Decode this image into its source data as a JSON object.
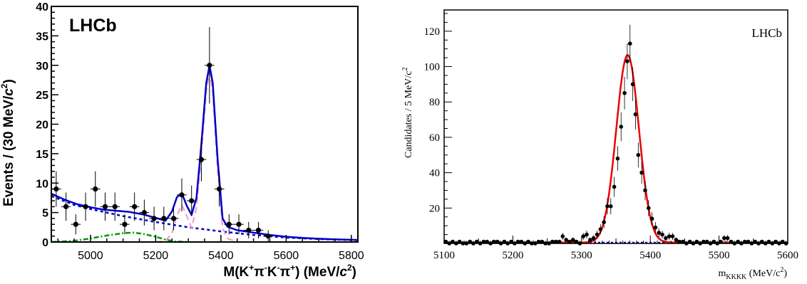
{
  "chart_data": [
    {
      "type": "scatter",
      "title": "",
      "annotation": "LHCb",
      "xlabel": {
        "prefix": "M(K",
        "k1": "+",
        "pi1": "π",
        "m1": "-",
        "k2": "K",
        "m2": "-",
        "pi2": "π",
        "p2": "+",
        "suffix": ") (MeV/",
        "c": "c",
        "exp": "2",
        "close": ")"
      },
      "ylabel": {
        "prefix": "Events / (30 MeV/",
        "c": "c",
        "exp": "2",
        "close": ")"
      },
      "xlim": [
        4880,
        5820
      ],
      "ylim": [
        0,
        40
      ],
      "xticks": [
        5000,
        5200,
        5400,
        5600,
        5800
      ],
      "yticks": [
        0,
        5,
        10,
        15,
        20,
        25,
        30,
        35,
        40
      ],
      "data_points": [
        {
          "x": 4895,
          "y": 9,
          "err": 3
        },
        {
          "x": 4925,
          "y": 6,
          "err": 2.4
        },
        {
          "x": 4955,
          "y": 3,
          "err": 1.7
        },
        {
          "x": 4985,
          "y": 6,
          "err": 2.4
        },
        {
          "x": 5015,
          "y": 9,
          "err": 3
        },
        {
          "x": 5045,
          "y": 6,
          "err": 2.4
        },
        {
          "x": 5075,
          "y": 6,
          "err": 2.4
        },
        {
          "x": 5105,
          "y": 3,
          "err": 1.7
        },
        {
          "x": 5135,
          "y": 6,
          "err": 2.4
        },
        {
          "x": 5165,
          "y": 5,
          "err": 2.2
        },
        {
          "x": 5195,
          "y": 4,
          "err": 2
        },
        {
          "x": 5225,
          "y": 4,
          "err": 2
        },
        {
          "x": 5255,
          "y": 4,
          "err": 2
        },
        {
          "x": 5280,
          "y": 8,
          "err": 2.8
        },
        {
          "x": 5310,
          "y": 7,
          "err": 2.6
        },
        {
          "x": 5340,
          "y": 14,
          "err": 3.7
        },
        {
          "x": 5365,
          "y": 30,
          "err": 6.5
        },
        {
          "x": 5395,
          "y": 9,
          "err": 3
        },
        {
          "x": 5425,
          "y": 3,
          "err": 1.7
        },
        {
          "x": 5455,
          "y": 3,
          "err": 1.7
        },
        {
          "x": 5485,
          "y": 2,
          "err": 1.4
        },
        {
          "x": 5515,
          "y": 2,
          "err": 1.4
        },
        {
          "x": 5545,
          "y": 1,
          "err": 1
        }
      ],
      "curves": {
        "total": {
          "color": "#0000cc",
          "x": [
            4880,
            4920,
            4960,
            5000,
            5040,
            5080,
            5120,
            5160,
            5200,
            5230,
            5250,
            5265,
            5280,
            5295,
            5310,
            5325,
            5340,
            5355,
            5365,
            5375,
            5390,
            5405,
            5420,
            5450,
            5500,
            5550,
            5600,
            5650,
            5700,
            5750,
            5820
          ],
          "y": [
            8.2,
            7.2,
            6.4,
            5.9,
            5.5,
            5.3,
            5.1,
            4.7,
            4.1,
            3.6,
            5.2,
            7.6,
            8.3,
            6.2,
            4.6,
            7.5,
            16.5,
            27,
            30,
            27,
            14,
            4,
            2.6,
            2,
            1.6,
            1.2,
            0.9,
            0.7,
            0.55,
            0.45,
            0.35
          ]
        },
        "combinatorial": {
          "color": "#0000cc",
          "x": [
            4880,
            4950,
            5000,
            5100,
            5200,
            5300,
            5400,
            5500,
            5600,
            5700,
            5820
          ],
          "y": [
            7.8,
            6.3,
            5.6,
            4.4,
            3.4,
            2.5,
            1.8,
            1.2,
            0.75,
            0.5,
            0.3
          ]
        },
        "signal": {
          "color": "#ee99cc",
          "x": [
            5200,
            5230,
            5250,
            5265,
            5280,
            5295,
            5310,
            5325,
            5340,
            5355,
            5365,
            5375,
            5390,
            5405,
            5420,
            5450
          ],
          "y": [
            0,
            0.2,
            1.5,
            4.5,
            6.3,
            4.5,
            2.4,
            5.8,
            14.8,
            25.5,
            28.8,
            25.5,
            12.2,
            2.4,
            0.6,
            0
          ]
        },
        "partial": {
          "color": "#009900",
          "x": [
            4880,
            4950,
            5000,
            5050,
            5100,
            5130,
            5160,
            5200,
            5230,
            5260,
            5300
          ],
          "y": [
            0,
            0.2,
            0.6,
            1.1,
            1.5,
            1.6,
            1.4,
            0.9,
            0.4,
            0.1,
            0
          ]
        }
      }
    },
    {
      "type": "scatter",
      "title": "",
      "annotation": "LHCb",
      "xlabel": {
        "m": "m",
        "sub": "KKKK",
        "units": " (MeV/c",
        "exp": "2",
        "close": ")"
      },
      "ylabel": "Candidates / 5 MeV/c",
      "ylabel_exp": "2",
      "xlim": [
        5100,
        5600
      ],
      "ylim": [
        0,
        132
      ],
      "xticks": [
        5100,
        5200,
        5300,
        5400,
        5500,
        5600
      ],
      "yticks": [
        20,
        40,
        60,
        80,
        100,
        120
      ],
      "data_points": [
        {
          "x": 5102.5,
          "y": 1
        },
        {
          "x": 5107.5,
          "y": 0
        },
        {
          "x": 5112.5,
          "y": 1
        },
        {
          "x": 5117.5,
          "y": 0
        },
        {
          "x": 5122.5,
          "y": 1
        },
        {
          "x": 5127.5,
          "y": 0
        },
        {
          "x": 5132.5,
          "y": 0
        },
        {
          "x": 5137.5,
          "y": 1
        },
        {
          "x": 5142.5,
          "y": 0
        },
        {
          "x": 5147.5,
          "y": 1
        },
        {
          "x": 5152.5,
          "y": 0
        },
        {
          "x": 5157.5,
          "y": 1
        },
        {
          "x": 5162.5,
          "y": 1
        },
        {
          "x": 5167.5,
          "y": 0
        },
        {
          "x": 5172.5,
          "y": 1
        },
        {
          "x": 5177.5,
          "y": 1
        },
        {
          "x": 5182.5,
          "y": 0
        },
        {
          "x": 5187.5,
          "y": 1
        },
        {
          "x": 5192.5,
          "y": 0
        },
        {
          "x": 5197.5,
          "y": 1
        },
        {
          "x": 5202.5,
          "y": 0
        },
        {
          "x": 5207.5,
          "y": 1
        },
        {
          "x": 5212.5,
          "y": 1
        },
        {
          "x": 5217.5,
          "y": 0
        },
        {
          "x": 5222.5,
          "y": 1
        },
        {
          "x": 5227.5,
          "y": 0
        },
        {
          "x": 5232.5,
          "y": 0
        },
        {
          "x": 5237.5,
          "y": 1
        },
        {
          "x": 5242.5,
          "y": 1
        },
        {
          "x": 5247.5,
          "y": 0
        },
        {
          "x": 5252.5,
          "y": 0
        },
        {
          "x": 5257.5,
          "y": 1
        },
        {
          "x": 5262.5,
          "y": 1
        },
        {
          "x": 5267.5,
          "y": 1
        },
        {
          "x": 5272.5,
          "y": 4
        },
        {
          "x": 5277.5,
          "y": 2
        },
        {
          "x": 5282.5,
          "y": 1
        },
        {
          "x": 5287.5,
          "y": 2
        },
        {
          "x": 5292.5,
          "y": 1
        },
        {
          "x": 5297.5,
          "y": 0
        },
        {
          "x": 5302.5,
          "y": 4
        },
        {
          "x": 5307.5,
          "y": 5
        },
        {
          "x": 5312.5,
          "y": 2
        },
        {
          "x": 5317.5,
          "y": 3
        },
        {
          "x": 5322.5,
          "y": 5
        },
        {
          "x": 5327.5,
          "y": 8
        },
        {
          "x": 5332.5,
          "y": 12
        },
        {
          "x": 5337.5,
          "y": 21
        },
        {
          "x": 5342.5,
          "y": 21
        },
        {
          "x": 5347.5,
          "y": 32
        },
        {
          "x": 5352.5,
          "y": 48
        },
        {
          "x": 5357.5,
          "y": 66
        },
        {
          "x": 5362.5,
          "y": 85
        },
        {
          "x": 5366.5,
          "y": 103
        },
        {
          "x": 5370.5,
          "y": 113
        },
        {
          "x": 5374.5,
          "y": 90
        },
        {
          "x": 5378.5,
          "y": 73
        },
        {
          "x": 5382.5,
          "y": 50
        },
        {
          "x": 5387.5,
          "y": 40
        },
        {
          "x": 5392.5,
          "y": 30
        },
        {
          "x": 5397.5,
          "y": 20
        },
        {
          "x": 5402.5,
          "y": 14
        },
        {
          "x": 5407.5,
          "y": 9
        },
        {
          "x": 5412.5,
          "y": 6
        },
        {
          "x": 5417.5,
          "y": 5
        },
        {
          "x": 5422.5,
          "y": 3
        },
        {
          "x": 5427.5,
          "y": 4
        },
        {
          "x": 5432.5,
          "y": 4
        },
        {
          "x": 5437.5,
          "y": 2
        },
        {
          "x": 5442.5,
          "y": 1
        },
        {
          "x": 5447.5,
          "y": 1
        },
        {
          "x": 5452.5,
          "y": 0
        },
        {
          "x": 5457.5,
          "y": 1
        },
        {
          "x": 5462.5,
          "y": 0
        },
        {
          "x": 5467.5,
          "y": 1
        },
        {
          "x": 5472.5,
          "y": 0
        },
        {
          "x": 5477.5,
          "y": 1
        },
        {
          "x": 5482.5,
          "y": 1
        },
        {
          "x": 5487.5,
          "y": 0
        },
        {
          "x": 5492.5,
          "y": 1
        },
        {
          "x": 5497.5,
          "y": 0
        },
        {
          "x": 5502.5,
          "y": 1
        },
        {
          "x": 5507.5,
          "y": 3
        },
        {
          "x": 5512.5,
          "y": 3
        },
        {
          "x": 5517.5,
          "y": 1
        },
        {
          "x": 5522.5,
          "y": 0
        },
        {
          "x": 5527.5,
          "y": 1
        },
        {
          "x": 5532.5,
          "y": 0
        },
        {
          "x": 5537.5,
          "y": 1
        },
        {
          "x": 5542.5,
          "y": 1
        },
        {
          "x": 5547.5,
          "y": 0
        },
        {
          "x": 5552.5,
          "y": 1
        },
        {
          "x": 5557.5,
          "y": 0
        },
        {
          "x": 5562.5,
          "y": 1
        },
        {
          "x": 5567.5,
          "y": 0
        },
        {
          "x": 5572.5,
          "y": 1
        },
        {
          "x": 5577.5,
          "y": 0
        },
        {
          "x": 5582.5,
          "y": 1
        },
        {
          "x": 5587.5,
          "y": 0
        },
        {
          "x": 5592.5,
          "y": 1
        },
        {
          "x": 5597.5,
          "y": 0
        }
      ],
      "fit": {
        "type": "gaussian",
        "color": "#ee0000",
        "mean": 5367,
        "sigma": 16.5,
        "amplitude": 106,
        "background": 0.5
      },
      "background_line": {
        "color": "#0000cc",
        "y": 0.5
      }
    }
  ]
}
